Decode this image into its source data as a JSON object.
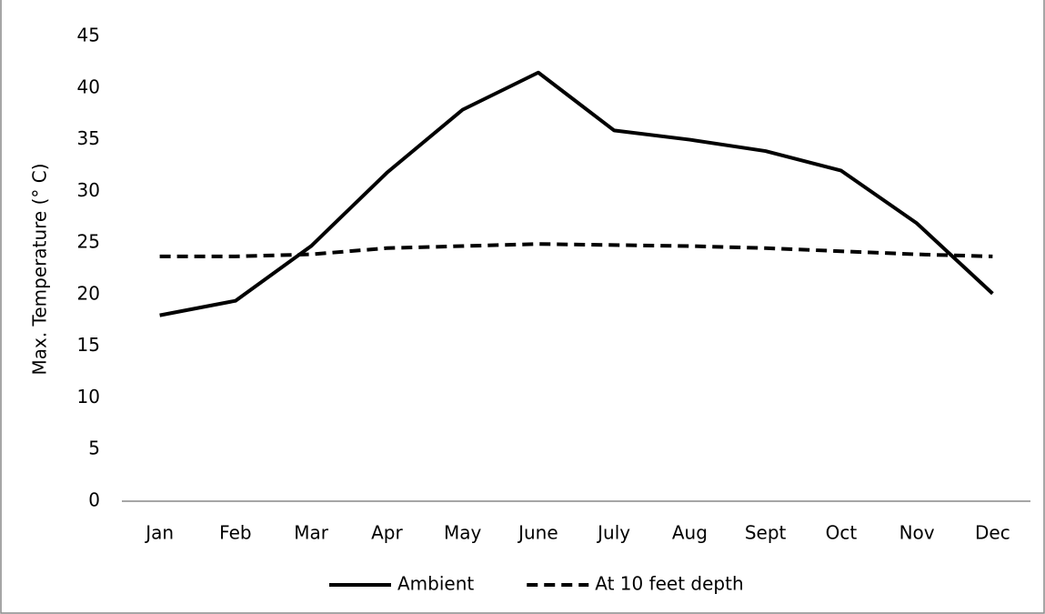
{
  "chart_data": {
    "type": "line",
    "y_label": "Max. Temperature (° C)",
    "categories": [
      "Jan",
      "Feb",
      "Mar",
      "Apr",
      "May",
      "June",
      "July",
      "Aug",
      "Sept",
      "Oct",
      "Nov",
      "Dec"
    ],
    "series": [
      {
        "name": "Ambient",
        "color": "#000000",
        "dash": "solid",
        "values": [
          18,
          19.4,
          24.7,
          31.8,
          37.9,
          41.5,
          35.9,
          35,
          33.9,
          32,
          26.9,
          20.1
        ]
      },
      {
        "name": "At 10 feet depth",
        "color": "#000000",
        "dash": "dashed",
        "values": [
          23.7,
          23.7,
          23.9,
          24.5,
          24.7,
          24.9,
          24.8,
          24.7,
          24.5,
          24.2,
          23.9,
          23.7
        ]
      }
    ],
    "ylim": [
      0,
      45
    ],
    "yticks": [
      0,
      5,
      10,
      15,
      20,
      25,
      30,
      35,
      40,
      45
    ],
    "grid": false,
    "legend": "bottom"
  }
}
